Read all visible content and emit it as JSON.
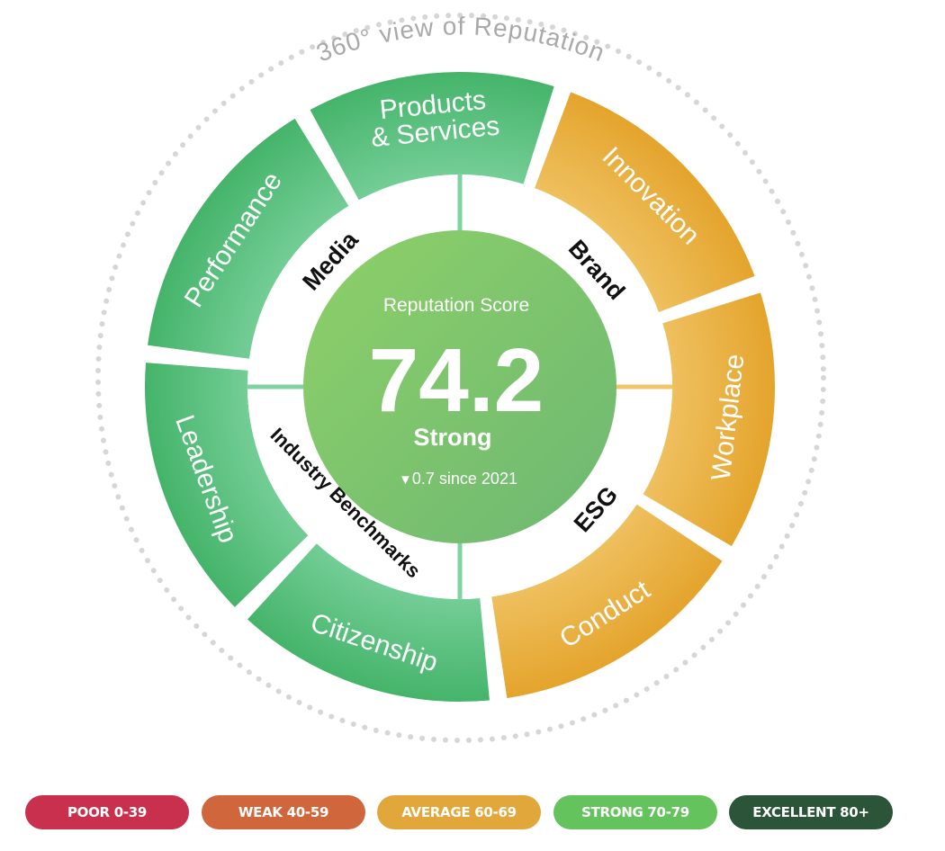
{
  "title": "360° view of Reputation",
  "center": {
    "caption": "Reputation Score",
    "score": "74.2",
    "rating": "Strong",
    "change_arrow": "▼",
    "change_text": "0.7 since 2021"
  },
  "outer_ring": [
    {
      "label": "Products",
      "label2": "& Services",
      "color": "green"
    },
    {
      "label": "Innovation",
      "color": "amber"
    },
    {
      "label": "Workplace",
      "color": "amber"
    },
    {
      "label": "Conduct",
      "color": "amber"
    },
    {
      "label": "Citizenship",
      "color": "green"
    },
    {
      "label": "Leadership",
      "color": "green"
    },
    {
      "label": "Performance",
      "color": "green"
    }
  ],
  "inner_ring": [
    {
      "label": "Media"
    },
    {
      "label": "Brand"
    },
    {
      "label": "ESG"
    },
    {
      "label": "Industry Benchmarks"
    }
  ],
  "legend": [
    {
      "label": "POOR 0-39",
      "color": "#c8304e"
    },
    {
      "label": "WEAK 40-59",
      "color": "#d0663b"
    },
    {
      "label": "AVERAGE 60-69",
      "color": "#e2a73a"
    },
    {
      "label": "STRONG 70-79",
      "color": "#64c35c"
    },
    {
      "label": "EXCELLENT 80+",
      "color": "#2b5438"
    }
  ],
  "colors": {
    "green": "#52bb77",
    "amber": "#e9ac38",
    "center_green": "#7dc26a",
    "dotted_ring": "#d6d6d6",
    "title_gray": "#a9a9a9"
  }
}
